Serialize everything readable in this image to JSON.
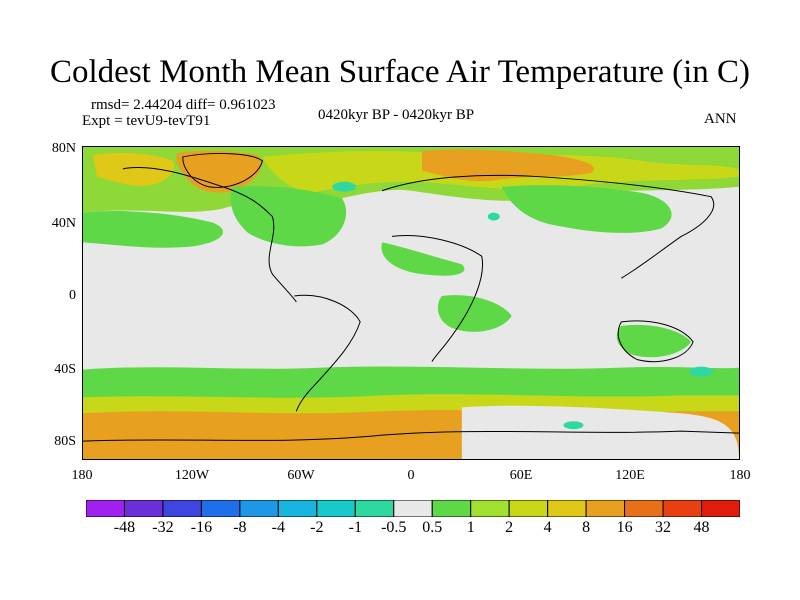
{
  "title": "Coldest Month Mean Surface Air Temperature (in C)",
  "stats": "rmsd= 2.44204 diff= 0.961023",
  "experiment": "Expt = tevU9-tevT91",
  "period": "0420kyr BP - 0420kyr BP",
  "season": "ANN",
  "lat_labels": [
    "80N",
    "40N",
    "0",
    "40S",
    "80S"
  ],
  "lon_labels": [
    "180",
    "120W",
    "60W",
    "0",
    "60E",
    "120E",
    "180"
  ],
  "colorbar": {
    "labels": [
      "-48",
      "-32",
      "-16",
      "-8",
      "-4",
      "-2",
      "-1",
      "-0.5",
      "0.5",
      "1",
      "2",
      "4",
      "8",
      "16",
      "32",
      "48"
    ],
    "colors": [
      "#a020f0",
      "#6a2fd8",
      "#3f46e0",
      "#1f6fe8",
      "#1f97e8",
      "#19b4e0",
      "#19c8c8",
      "#2fd8a0",
      "#e8e8e8",
      "#5fd848",
      "#a0e030",
      "#c8d818",
      "#e0c818",
      "#e8a020",
      "#e87018",
      "#e84010",
      "#e01c0c"
    ]
  }
}
